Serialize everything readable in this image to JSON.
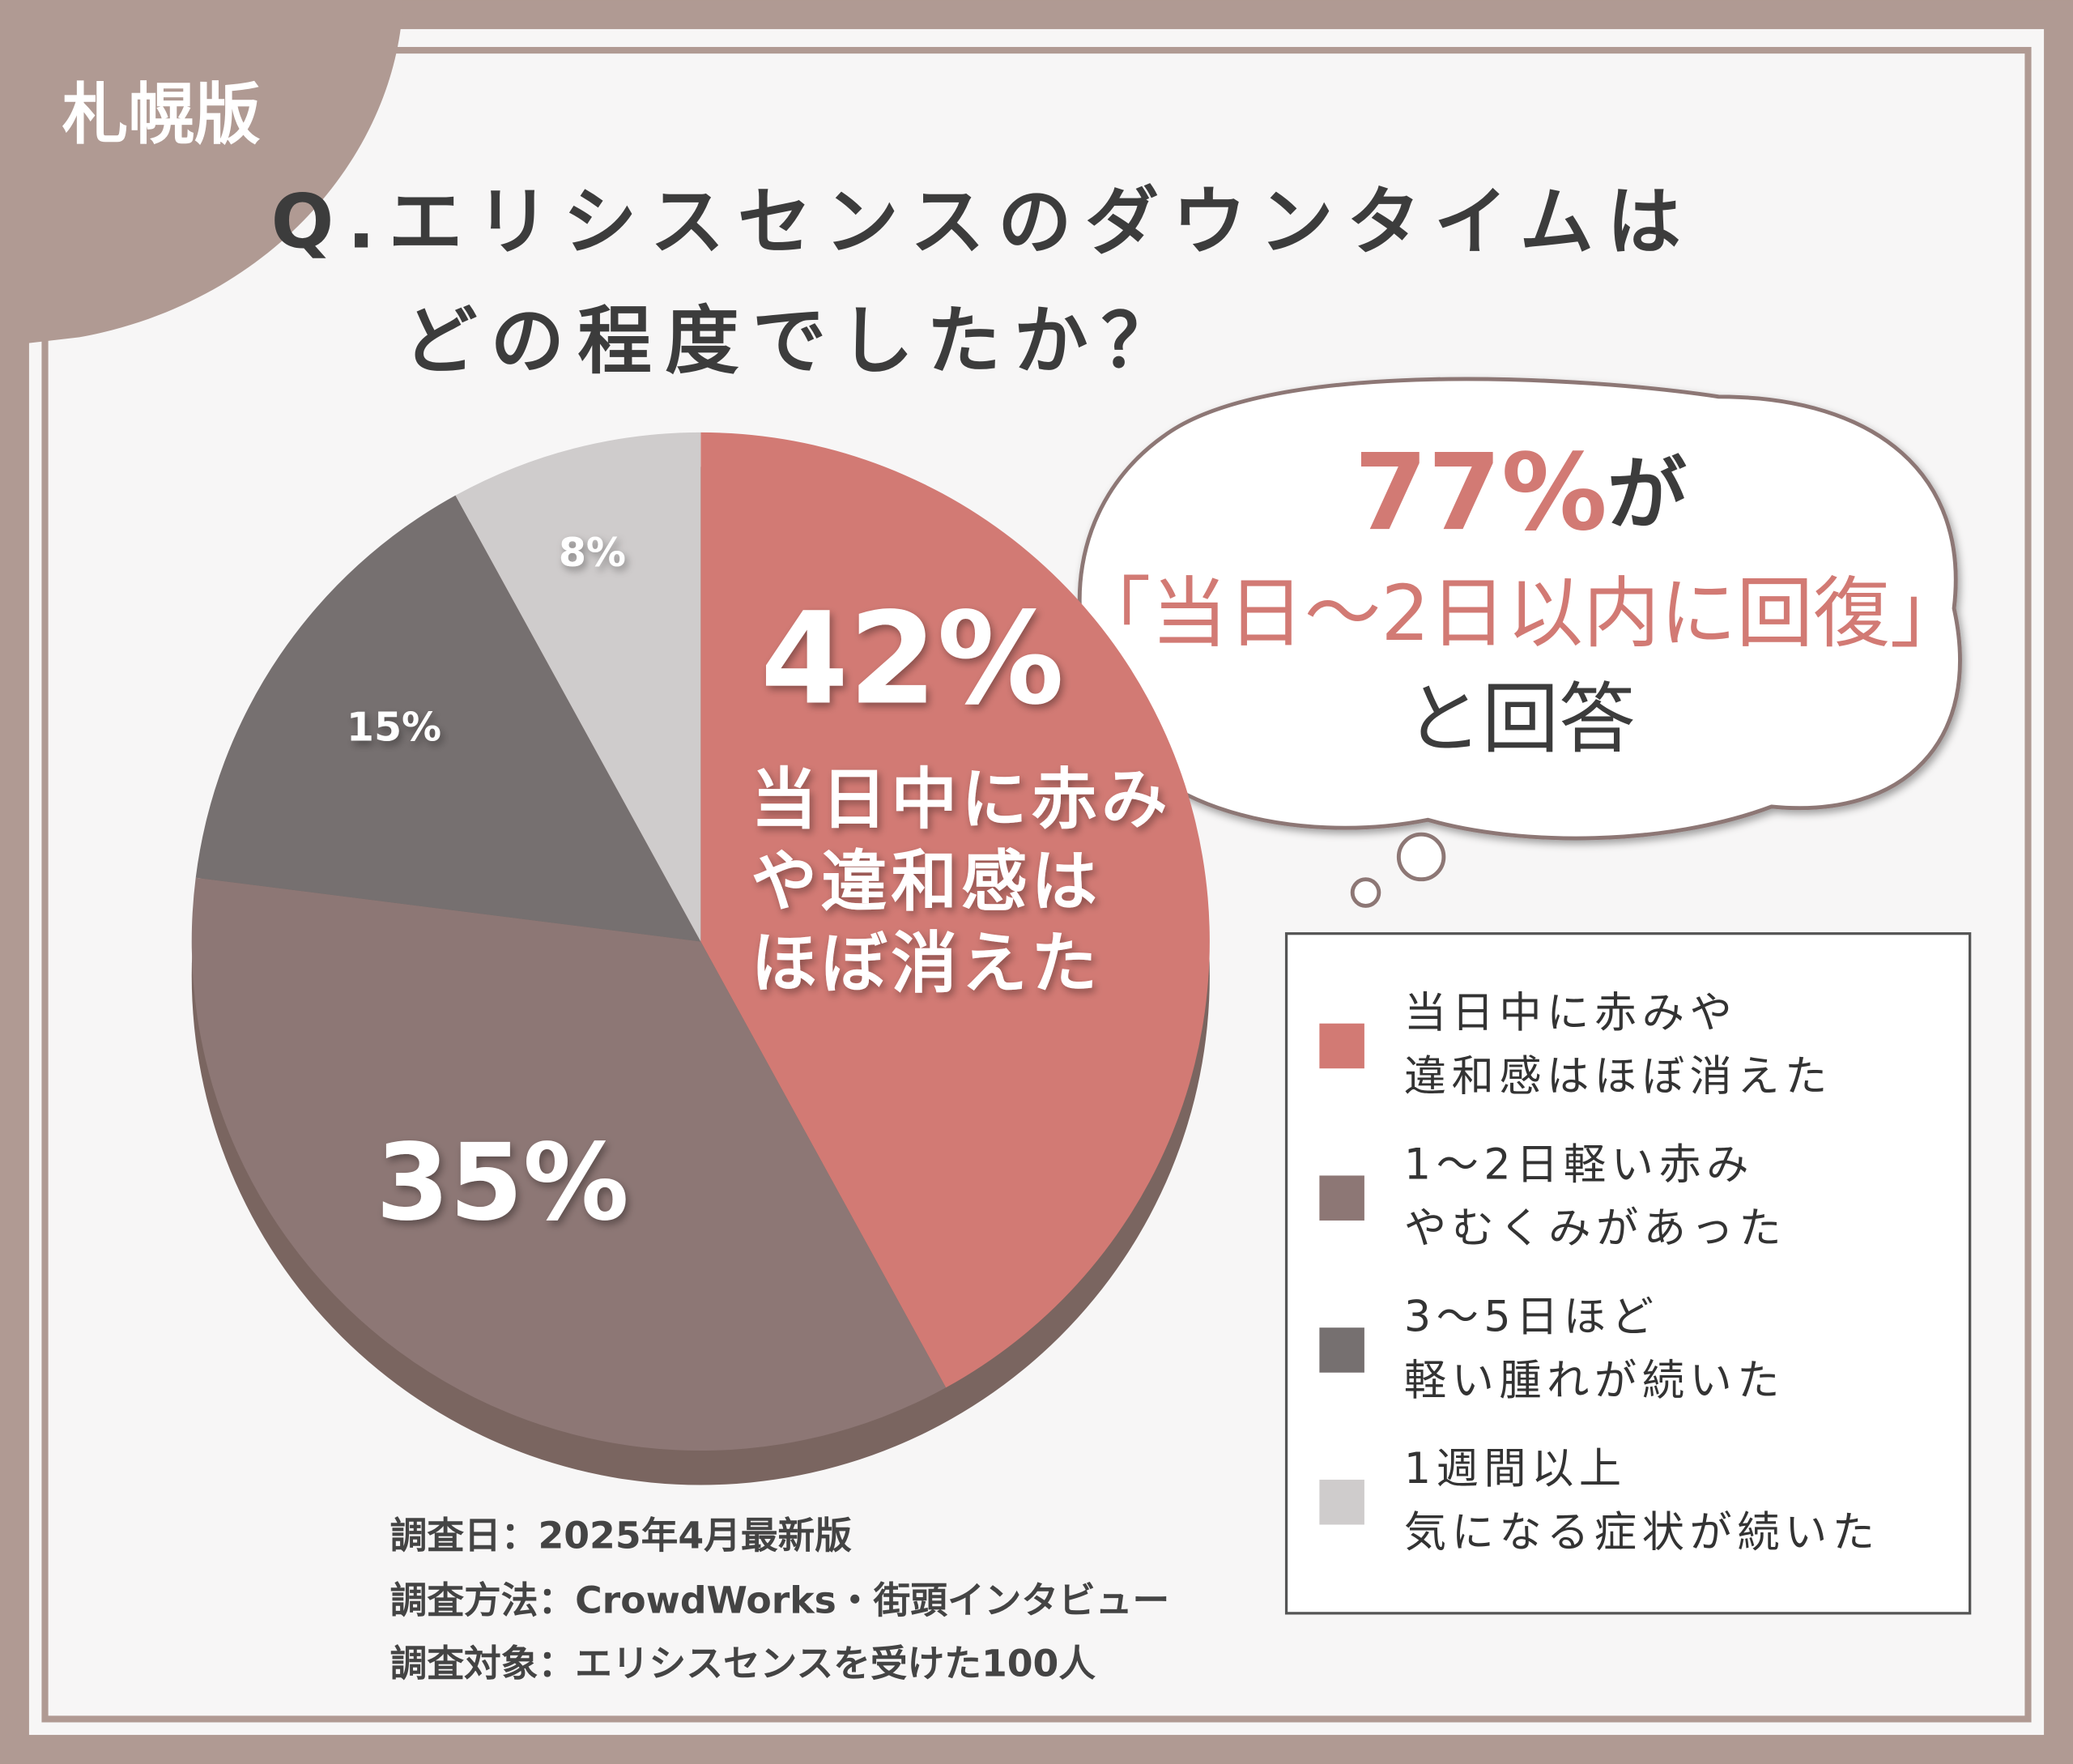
{
  "badge": "札幌版",
  "chart_data": {
    "type": "pie",
    "title": [
      "Q.エリシスセンスのダウンタイムは",
      "どの程度でしたか？"
    ],
    "categories": [
      [
        "当日中に赤みや",
        "違和感はほぼ消えた"
      ],
      [
        "1〜2日軽い赤み",
        "やむくみがあった"
      ],
      [
        "3〜5日ほど",
        "軽い腫れが続いた"
      ],
      [
        "1週間以上",
        "気になる症状が続いた"
      ]
    ],
    "values": [
      42,
      35,
      15,
      8
    ],
    "value_labels": [
      "42%",
      "35%",
      "15%",
      "8%"
    ],
    "colors": [
      "#d27a74",
      "#8d7775",
      "#767070",
      "#cfcccc"
    ],
    "slice_annotation": [
      "当日中に赤み",
      "や違和感は",
      "ほぼ消えた"
    ],
    "legend": "right"
  },
  "callout": {
    "highlight": "77%",
    "particle": "が",
    "quote": "「当日〜2日以内に回復」",
    "tail": "と回答"
  },
  "notes": [
    "調査日：2025年4月最新版",
    "調査方法：CrowdWorks・街頭インタビュー",
    "調査対象：エリシスセンスを受けた100人"
  ]
}
